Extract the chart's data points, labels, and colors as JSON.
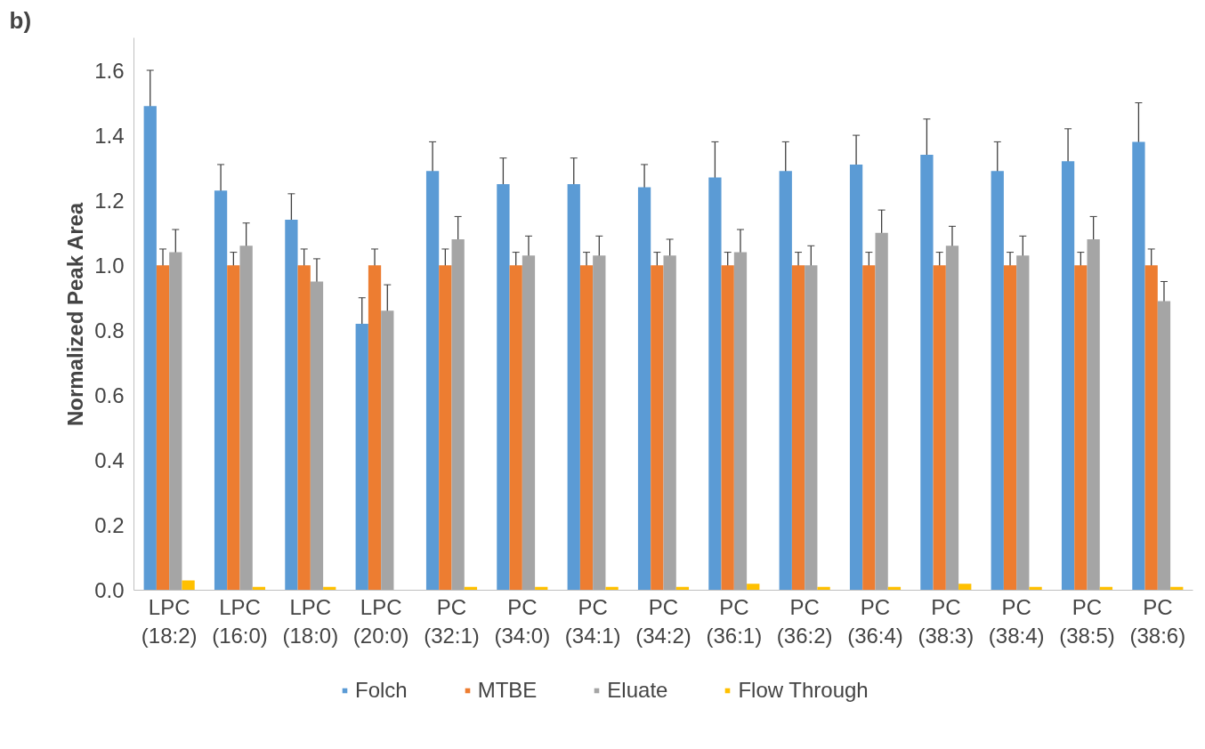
{
  "chart_data": {
    "type": "bar",
    "ylabel": "Normalized Peak Area",
    "annotations": [
      "b)"
    ],
    "categories": [
      "LPC\n(18:2)",
      "LPC\n(16:0)",
      "LPC\n(18:0)",
      "LPC\n(20:0)",
      "PC\n(32:1)",
      "PC\n(34:0)",
      "PC\n(34:1)",
      "PC\n(34:2)",
      "PC\n(36:1)",
      "PC\n(36:2)",
      "PC\n(36:4)",
      "PC\n(38:3)",
      "PC\n(38:4)",
      "PC\n(38:5)",
      "PC\n(38:6)"
    ],
    "series": [
      {
        "name": "Folch",
        "color": "#5b9bd5",
        "values": [
          1.49,
          1.23,
          1.14,
          0.82,
          1.29,
          1.25,
          1.25,
          1.24,
          1.27,
          1.29,
          1.31,
          1.34,
          1.29,
          1.32,
          1.38
        ],
        "errors": [
          0.11,
          0.08,
          0.08,
          0.08,
          0.09,
          0.08,
          0.08,
          0.07,
          0.11,
          0.09,
          0.09,
          0.11,
          0.09,
          0.1,
          0.12
        ]
      },
      {
        "name": "MTBE",
        "color": "#ed7d31",
        "values": [
          1.0,
          1.0,
          1.0,
          1.0,
          1.0,
          1.0,
          1.0,
          1.0,
          1.0,
          1.0,
          1.0,
          1.0,
          1.0,
          1.0,
          1.0
        ],
        "errors": [
          0.05,
          0.04,
          0.05,
          0.05,
          0.05,
          0.04,
          0.04,
          0.04,
          0.04,
          0.04,
          0.04,
          0.04,
          0.04,
          0.04,
          0.05
        ]
      },
      {
        "name": "Eluate",
        "color": "#a5a5a5",
        "values": [
          1.04,
          1.06,
          0.95,
          0.86,
          1.08,
          1.03,
          1.03,
          1.03,
          1.04,
          1.0,
          1.1,
          1.06,
          1.03,
          1.08,
          0.89
        ],
        "errors": [
          0.07,
          0.07,
          0.07,
          0.08,
          0.07,
          0.06,
          0.06,
          0.05,
          0.07,
          0.06,
          0.07,
          0.06,
          0.06,
          0.07,
          0.06
        ]
      },
      {
        "name": "Flow Through",
        "color": "#ffc000",
        "values": [
          0.03,
          0.01,
          0.01,
          0.0,
          0.01,
          0.01,
          0.01,
          0.01,
          0.02,
          0.01,
          0.01,
          0.02,
          0.01,
          0.01,
          0.01
        ]
      }
    ],
    "ylim": [
      0,
      1.7
    ],
    "yticks": [
      {
        "value": 0,
        "label": "0.0"
      },
      {
        "value": 0.2,
        "label": "0.2"
      },
      {
        "value": 0.4,
        "label": "0.4"
      },
      {
        "value": 0.6,
        "label": "0.6"
      },
      {
        "value": 0.8,
        "label": "0.8"
      },
      {
        "value": 1,
        "label": "1.0"
      },
      {
        "value": 1.2,
        "label": "1.2"
      },
      {
        "value": 1.4,
        "label": "1.4"
      },
      {
        "value": 1.6,
        "label": "1.6"
      }
    ],
    "grid": false,
    "legend": "bottom"
  }
}
